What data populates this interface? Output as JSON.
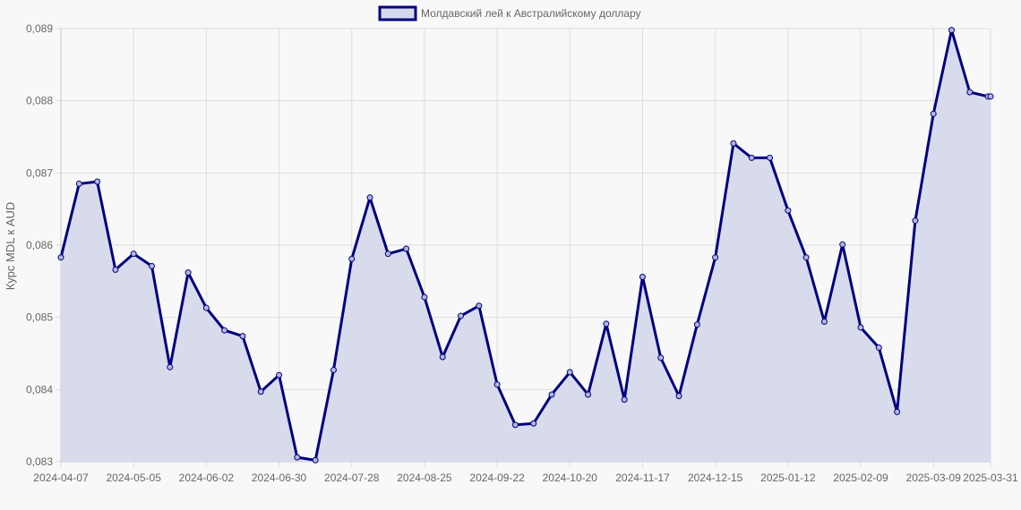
{
  "chart_data": {
    "type": "line",
    "title": "",
    "xlabel": "",
    "ylabel": "Курс MDL к AUD",
    "legend": {
      "position": "top",
      "entries": [
        "Молдавский лей к Австралийскому доллару"
      ]
    },
    "grid": true,
    "ylim": [
      0.083,
      0.089
    ],
    "y_ticks": [
      "0,083",
      "0,084",
      "0,085",
      "0,086",
      "0,087",
      "0,088",
      "0,089"
    ],
    "x_ticks": [
      "2024-04-07",
      "2024-05-05",
      "2024-06-02",
      "2024-06-30",
      "2024-07-28",
      "2024-08-25",
      "2024-09-22",
      "2024-10-20",
      "2024-11-17",
      "2024-12-15",
      "2025-01-12",
      "2025-02-09",
      "2025-03-09",
      "2025-03-31"
    ],
    "colors": {
      "line": "#000080",
      "fill": "#d6d9ea",
      "grid": "#dddddd",
      "point_fill": "#b3b6dc"
    },
    "series": [
      {
        "name": "Молдавский лей к Австралийскому доллару",
        "x": [
          "2024-04-07",
          "2024-04-14",
          "2024-04-21",
          "2024-04-28",
          "2024-05-05",
          "2024-05-12",
          "2024-05-19",
          "2024-05-26",
          "2024-06-02",
          "2024-06-09",
          "2024-06-16",
          "2024-06-23",
          "2024-06-30",
          "2024-07-07",
          "2024-07-14",
          "2024-07-21",
          "2024-07-28",
          "2024-08-04",
          "2024-08-11",
          "2024-08-18",
          "2024-08-25",
          "2024-09-01",
          "2024-09-08",
          "2024-09-15",
          "2024-09-22",
          "2024-09-29",
          "2024-10-06",
          "2024-10-13",
          "2024-10-20",
          "2024-10-27",
          "2024-11-03",
          "2024-11-10",
          "2024-11-17",
          "2024-11-24",
          "2024-12-01",
          "2024-12-08",
          "2024-12-15",
          "2024-12-22",
          "2024-12-29",
          "2025-01-05",
          "2025-01-12",
          "2025-01-19",
          "2025-01-26",
          "2025-02-02",
          "2025-02-09",
          "2025-02-16",
          "2025-02-23",
          "2025-03-02",
          "2025-03-09",
          "2025-03-16",
          "2025-03-23",
          "2025-03-30",
          "2025-03-31"
        ],
        "values": [
          0.08583,
          0.08685,
          0.08688,
          0.08566,
          0.08588,
          0.08571,
          0.08431,
          0.08562,
          0.08513,
          0.08482,
          0.08474,
          0.08397,
          0.0842,
          0.08306,
          0.08302,
          0.08427,
          0.08581,
          0.08666,
          0.08588,
          0.08595,
          0.08528,
          0.08445,
          0.08502,
          0.08516,
          0.08407,
          0.08351,
          0.08353,
          0.08393,
          0.08424,
          0.08393,
          0.08491,
          0.08386,
          0.08556,
          0.08444,
          0.08391,
          0.0849,
          0.08583,
          0.08741,
          0.08721,
          0.08721,
          0.08648,
          0.08583,
          0.08494,
          0.08601,
          0.08486,
          0.08458,
          0.08369,
          0.08634,
          0.08782,
          0.08898,
          0.08812,
          0.08806,
          0.08806
        ]
      }
    ]
  }
}
